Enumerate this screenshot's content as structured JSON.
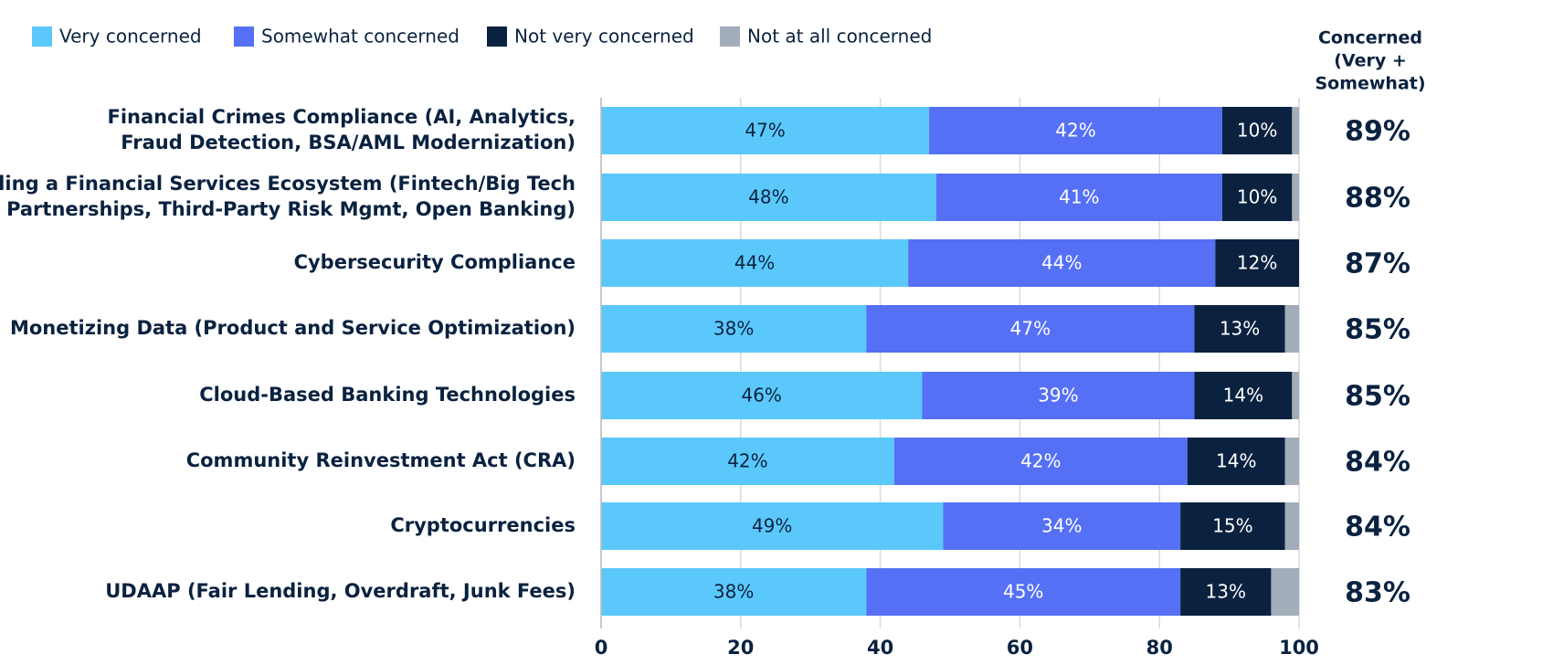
{
  "chart_data": {
    "type": "stacked-bar-horizontal",
    "categories": [
      [
        "Financial Crimes Compliance (AI, Analytics,",
        "Fraud Detection, BSA/AML Modernization)"
      ],
      [
        "Building a Financial Services Ecosystem (Fintech/Big Tech",
        "Partnerships, Third-Party Risk Mgmt, Open Banking)"
      ],
      [
        "Cybersecurity Compliance"
      ],
      [
        "Monetizing Data (Product and Service Optimization)"
      ],
      [
        "Cloud-Based Banking Technologies"
      ],
      [
        "Community Reinvestment Act (CRA)"
      ],
      [
        "Cryptocurrencies"
      ],
      [
        "UDAAP (Fair Lending, Overdraft, Junk Fees)"
      ]
    ],
    "series": [
      {
        "name": "Very concerned",
        "color": "#5bc8fb",
        "values": [
          47,
          48,
          44,
          38,
          46,
          42,
          49,
          38
        ],
        "value_labels": [
          "47%",
          "48%",
          "44%",
          "38%",
          "46%",
          "42%",
          "49%",
          "38%"
        ]
      },
      {
        "name": "Somewhat concerned",
        "color": "#5570f5",
        "values": [
          42,
          41,
          44,
          47,
          39,
          42,
          34,
          45
        ],
        "value_labels": [
          "42%",
          "41%",
          "44%",
          "47%",
          "39%",
          "42%",
          "34%",
          "45%"
        ]
      },
      {
        "name": "Not very concerned",
        "color": "#0a2240",
        "values": [
          10,
          10,
          12,
          13,
          14,
          14,
          15,
          13
        ],
        "value_labels": [
          "10%",
          "10%",
          "12%",
          "13%",
          "14%",
          "14%",
          "15%",
          "13%"
        ]
      },
      {
        "name": "Not at all concerned",
        "color": "#a2adb9",
        "values": [
          1,
          1,
          0,
          2,
          1,
          2,
          2,
          4
        ]
      }
    ],
    "xlim": [
      0,
      100
    ],
    "xticks": [
      0,
      20,
      40,
      60,
      80,
      100
    ],
    "grid": true,
    "concerned": {
      "title": [
        "Concerned",
        "(Very +",
        "Somewhat)"
      ],
      "values": [
        89,
        88,
        87,
        85,
        85,
        84,
        84,
        83
      ],
      "value_labels": [
        "89%",
        "88%",
        "87%",
        "85%",
        "85%",
        "84%",
        "84%",
        "83%"
      ]
    }
  }
}
